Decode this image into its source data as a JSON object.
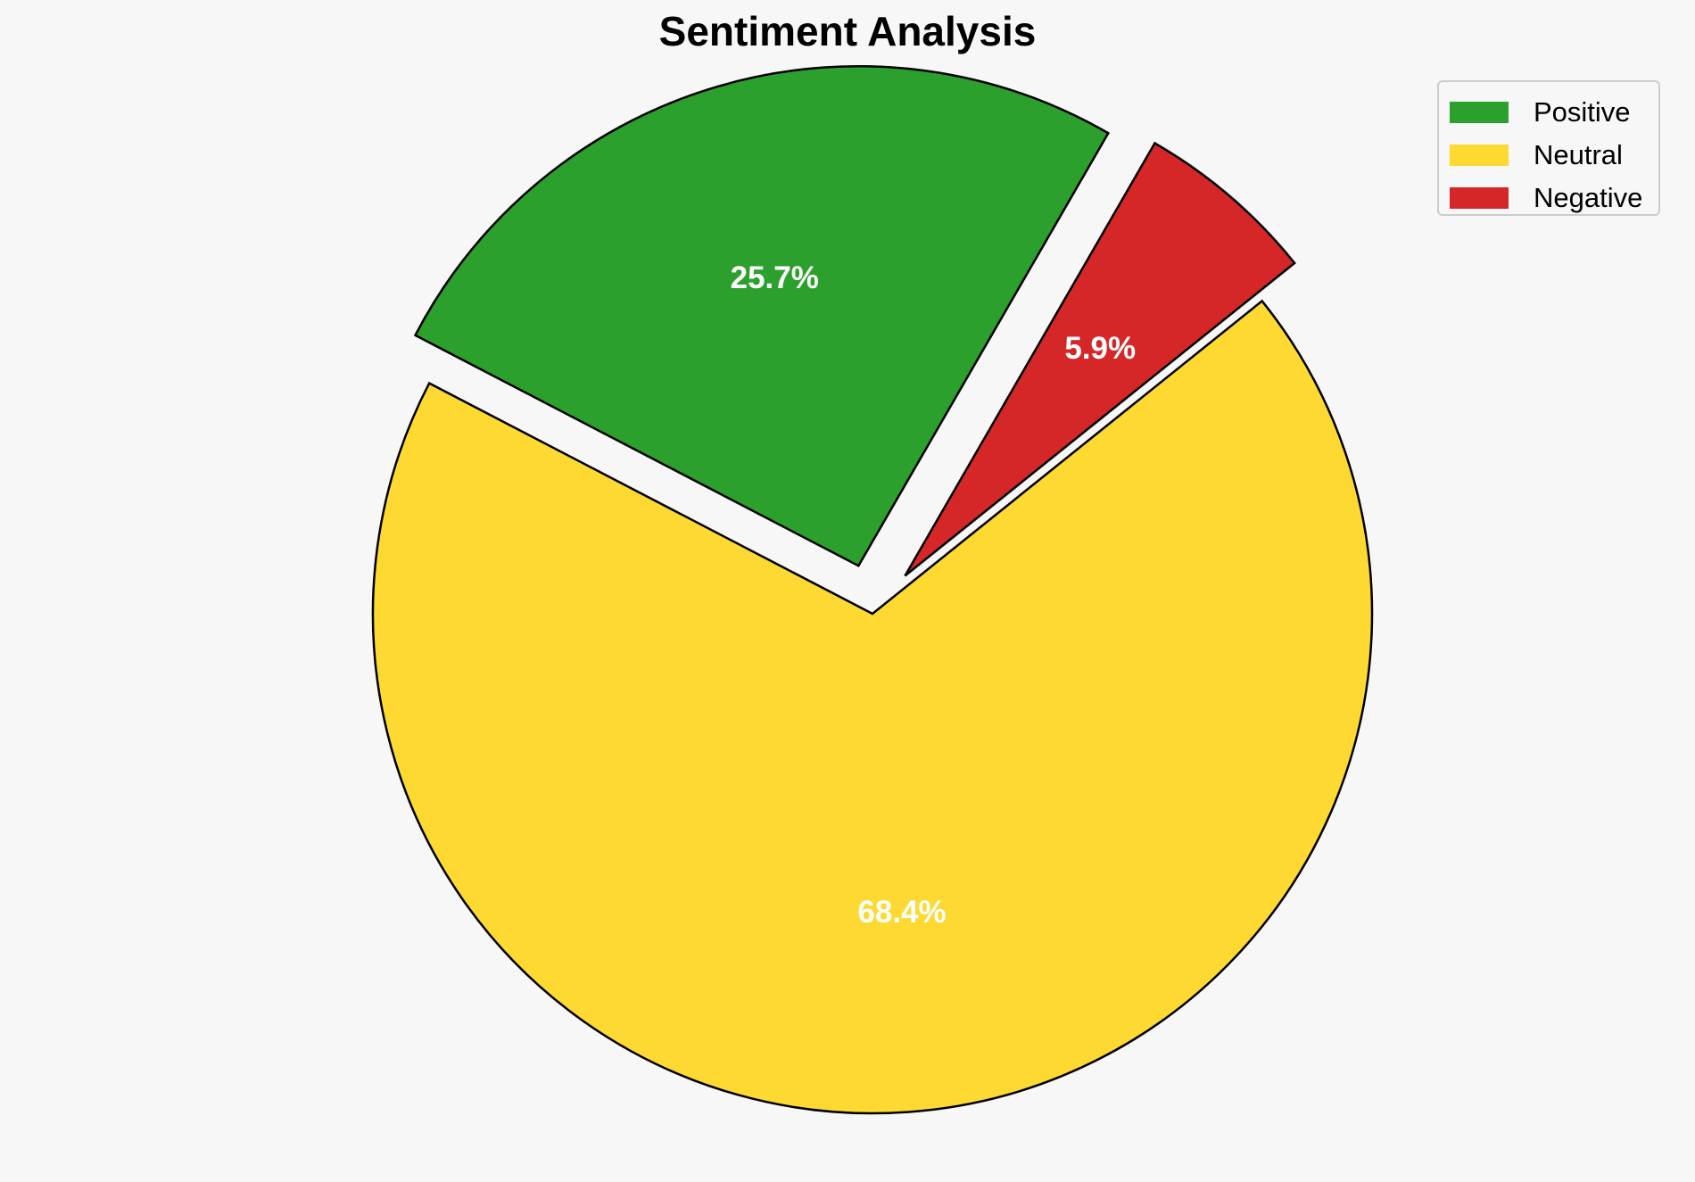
{
  "chart_data": {
    "type": "pie",
    "title": "Sentiment Analysis",
    "categories": [
      "Positive",
      "Neutral",
      "Negative"
    ],
    "values": [
      25.7,
      68.4,
      5.9
    ],
    "labels": [
      "25.7%",
      "68.4%",
      "5.9%"
    ],
    "colors": [
      "#2ca02c",
      "#fdd931",
      "#d62728"
    ],
    "exploded": [
      true,
      false,
      true
    ],
    "edgecolor": "#000000",
    "legend_position": "top-right",
    "label_color": "#ffffff"
  },
  "background_color": "#f7f7f7"
}
